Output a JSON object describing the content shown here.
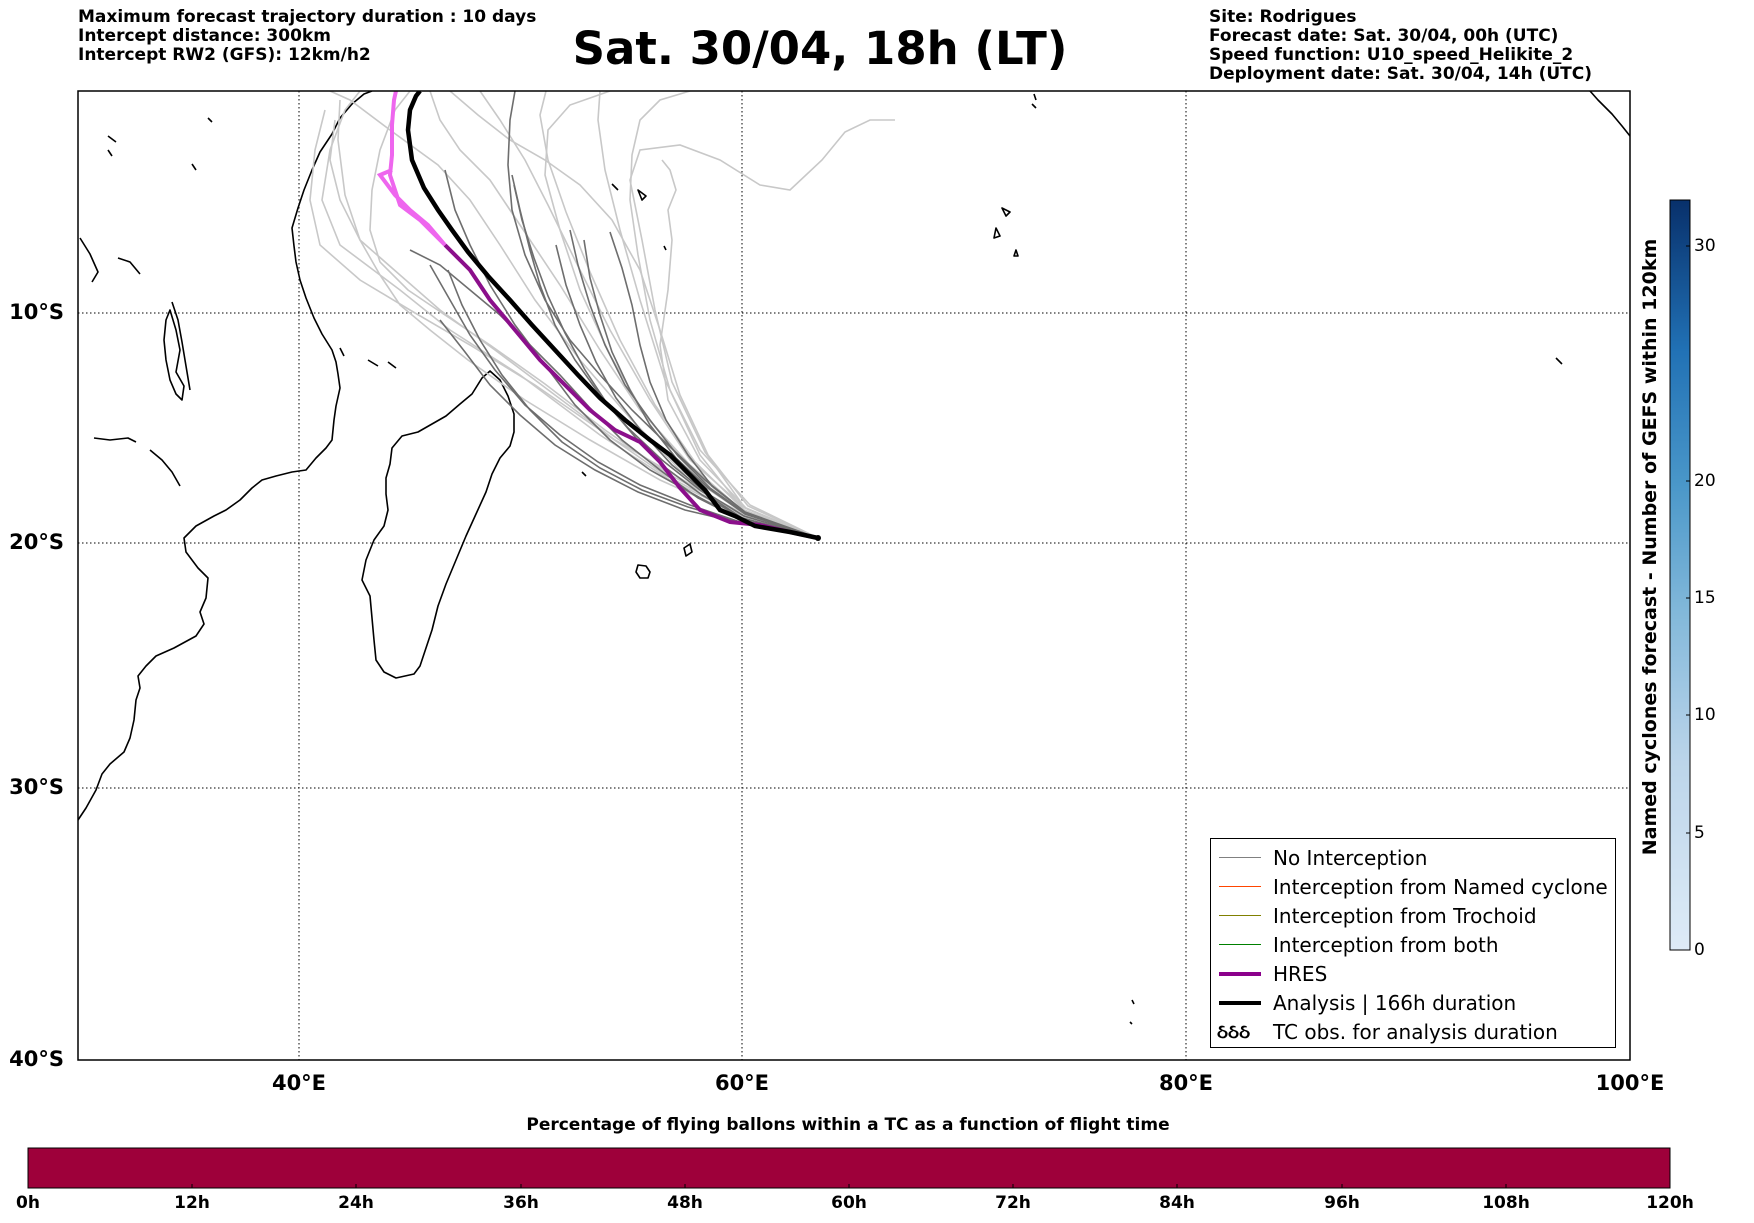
{
  "header": {
    "left": {
      "line1": "Maximum forecast trajectory duration : 10 days",
      "line2": "Intercept distance: 300km",
      "line3": "Intercept RW2 (GFS):  12km/h2"
    },
    "title": "Sat. 30/04, 18h (LT)",
    "right": {
      "site": "Site: Rodrigues",
      "forecast_date": "Forecast date: Sat. 30/04, 00h (UTC)",
      "speed_function": "Speed function: U10_speed_Helikite_2",
      "deployment_date": "Deployment date: Sat. 30/04, 14h (UTC)"
    }
  },
  "map": {
    "lon_range": [
      30,
      100
    ],
    "lat_range": [
      -40,
      0
    ],
    "lat_labels": [
      "10°S",
      "20°S",
      "30°S",
      "40°S"
    ],
    "lon_labels": [
      "40°E",
      "60°E",
      "80°E",
      "100°E"
    ],
    "grid": "dotted",
    "launch_point": {
      "lon": 63.4,
      "lat": -19.7
    },
    "colors": {
      "ensemble_light": "#c8c8c8",
      "ensemble_dark": "#6e6e6e",
      "hres": "#8b0f8b",
      "hres_late": "#ee66ee",
      "analysis": "#000000"
    }
  },
  "legend": {
    "items": [
      {
        "label": "No Interception",
        "color": "#808080",
        "kind": "line"
      },
      {
        "label": "Interception from Named cyclone",
        "color": "#ff4500",
        "kind": "line"
      },
      {
        "label": "Interception from Trochoid",
        "color": "#808000",
        "kind": "line"
      },
      {
        "label": "Interception from both",
        "color": "#008000",
        "kind": "line"
      },
      {
        "label": "HRES",
        "color": "#8b008b",
        "kind": "thick"
      },
      {
        "label": "Analysis | 166h duration",
        "color": "#000000",
        "kind": "thick"
      },
      {
        "label": "TC obs. for analysis duration",
        "color": "#000000",
        "kind": "symbol",
        "symbol": "ઠઠઠ"
      }
    ]
  },
  "colorbar_vertical": {
    "label": "Named cyclones forecast - Number of GEFS within 120km",
    "ticks": [
      "0",
      "5",
      "10",
      "15",
      "20",
      "30"
    ],
    "colors": [
      "#dde9f6",
      "#c6dbef",
      "#9ecae1",
      "#6baed6",
      "#4292c6",
      "#2171b5",
      "#08519c",
      "#08306b"
    ]
  },
  "colorbar_horizontal": {
    "title": "Percentage of flying ballons within a TC as a function of flight time",
    "ticks": [
      "0h",
      "12h",
      "24h",
      "36h",
      "48h",
      "60h",
      "72h",
      "84h",
      "96h",
      "108h",
      "120h"
    ],
    "fill_color": "#9e003a"
  }
}
